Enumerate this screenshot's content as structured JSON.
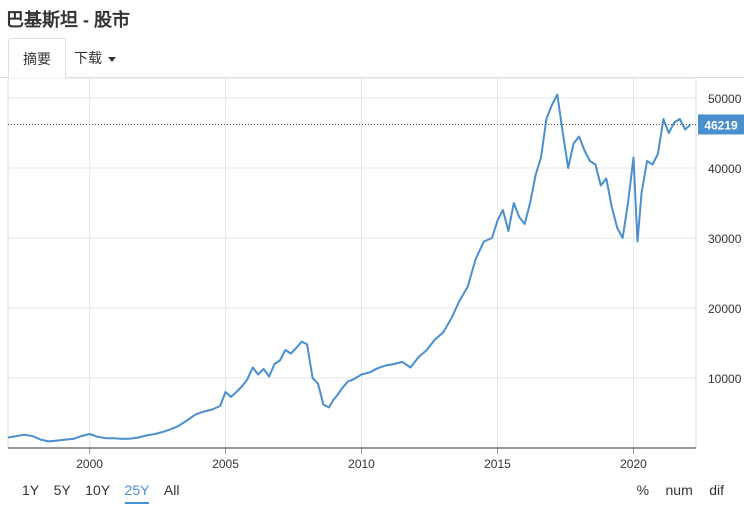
{
  "page": {
    "title": "巴基斯坦 - 股市"
  },
  "tabs": {
    "summary": "摘要",
    "download": "下载"
  },
  "ranges": [
    "1Y",
    "5Y",
    "10Y",
    "25Y",
    "All"
  ],
  "active_range": "25Y",
  "modes": [
    "%",
    "num",
    "dif"
  ],
  "colors": {
    "line": "#4a8fce",
    "label_bg": "#4a8fce",
    "grid": "#e6e6e6"
  },
  "chart_data": {
    "type": "line",
    "title": "",
    "xlabel": "",
    "ylabel": "",
    "x_ticks": [
      "2000",
      "2005",
      "2010",
      "2015",
      "2020"
    ],
    "y_ticks": [
      "10000",
      "20000",
      "30000",
      "40000",
      "50000"
    ],
    "ylim": [
      0,
      52000
    ],
    "xlim": [
      1997.0,
      2022.3
    ],
    "last_value_label": "46219",
    "last_value": 46219,
    "series": [
      {
        "x": [
          1997.0,
          1997.3,
          1997.6,
          1997.9,
          1998.2,
          1998.5,
          1998.8,
          1999.1,
          1999.4,
          1999.7,
          2000.0,
          2000.3,
          2000.6,
          2000.9,
          2001.2,
          2001.5,
          2001.8,
          2002.1,
          2002.4,
          2002.7,
          2003.0,
          2003.3,
          2003.6,
          2003.9,
          2004.2,
          2004.5,
          2004.8,
          2005.0,
          2005.2,
          2005.4,
          2005.6,
          2005.8,
          2006.0,
          2006.2,
          2006.4,
          2006.6,
          2006.8,
          2007.0,
          2007.2,
          2007.4,
          2007.6,
          2007.8,
          2008.0,
          2008.2,
          2008.4,
          2008.6,
          2008.8,
          2008.95,
          2009.1,
          2009.3,
          2009.5,
          2009.7,
          2010.0,
          2010.3,
          2010.6,
          2010.9,
          2011.2,
          2011.5,
          2011.8,
          2012.1,
          2012.4,
          2012.7,
          2013.0,
          2013.3,
          2013.6,
          2013.9,
          2014.2,
          2014.5,
          2014.8,
          2015.0,
          2015.2,
          2015.4,
          2015.6,
          2015.8,
          2016.0,
          2016.2,
          2016.4,
          2016.6,
          2016.8,
          2017.0,
          2017.2,
          2017.4,
          2017.6,
          2017.8,
          2018.0,
          2018.2,
          2018.4,
          2018.6,
          2018.8,
          2019.0,
          2019.2,
          2019.4,
          2019.6,
          2019.8,
          2020.0,
          2020.15,
          2020.3,
          2020.5,
          2020.7,
          2020.9,
          2021.1,
          2021.3,
          2021.5,
          2021.7,
          2021.9,
          2022.1
        ],
        "y": [
          1500,
          1700,
          1900,
          1700,
          1200,
          950,
          1050,
          1200,
          1300,
          1700,
          2000,
          1600,
          1400,
          1400,
          1300,
          1350,
          1500,
          1800,
          2000,
          2300,
          2700,
          3200,
          4000,
          4800,
          5200,
          5500,
          6000,
          8000,
          7300,
          8000,
          8800,
          9800,
          11500,
          10500,
          11300,
          10200,
          12000,
          12500,
          14000,
          13500,
          14300,
          15200,
          14800,
          10000,
          9200,
          6200,
          5800,
          6800,
          7500,
          8600,
          9500,
          9800,
          10500,
          10800,
          11400,
          11800,
          12000,
          12300,
          11500,
          13000,
          14000,
          15500,
          16500,
          18500,
          21000,
          23000,
          27000,
          29500,
          30000,
          32500,
          34000,
          31000,
          35000,
          33000,
          32000,
          35000,
          39000,
          41500,
          47000,
          49000,
          50500,
          45000,
          40000,
          43500,
          44500,
          42500,
          41000,
          40500,
          37500,
          38500,
          34500,
          31500,
          30000,
          35000,
          41500,
          29500,
          36500,
          41000,
          40500,
          42000,
          47000,
          45000,
          46500,
          47000,
          45500,
          46219
        ]
      }
    ]
  }
}
